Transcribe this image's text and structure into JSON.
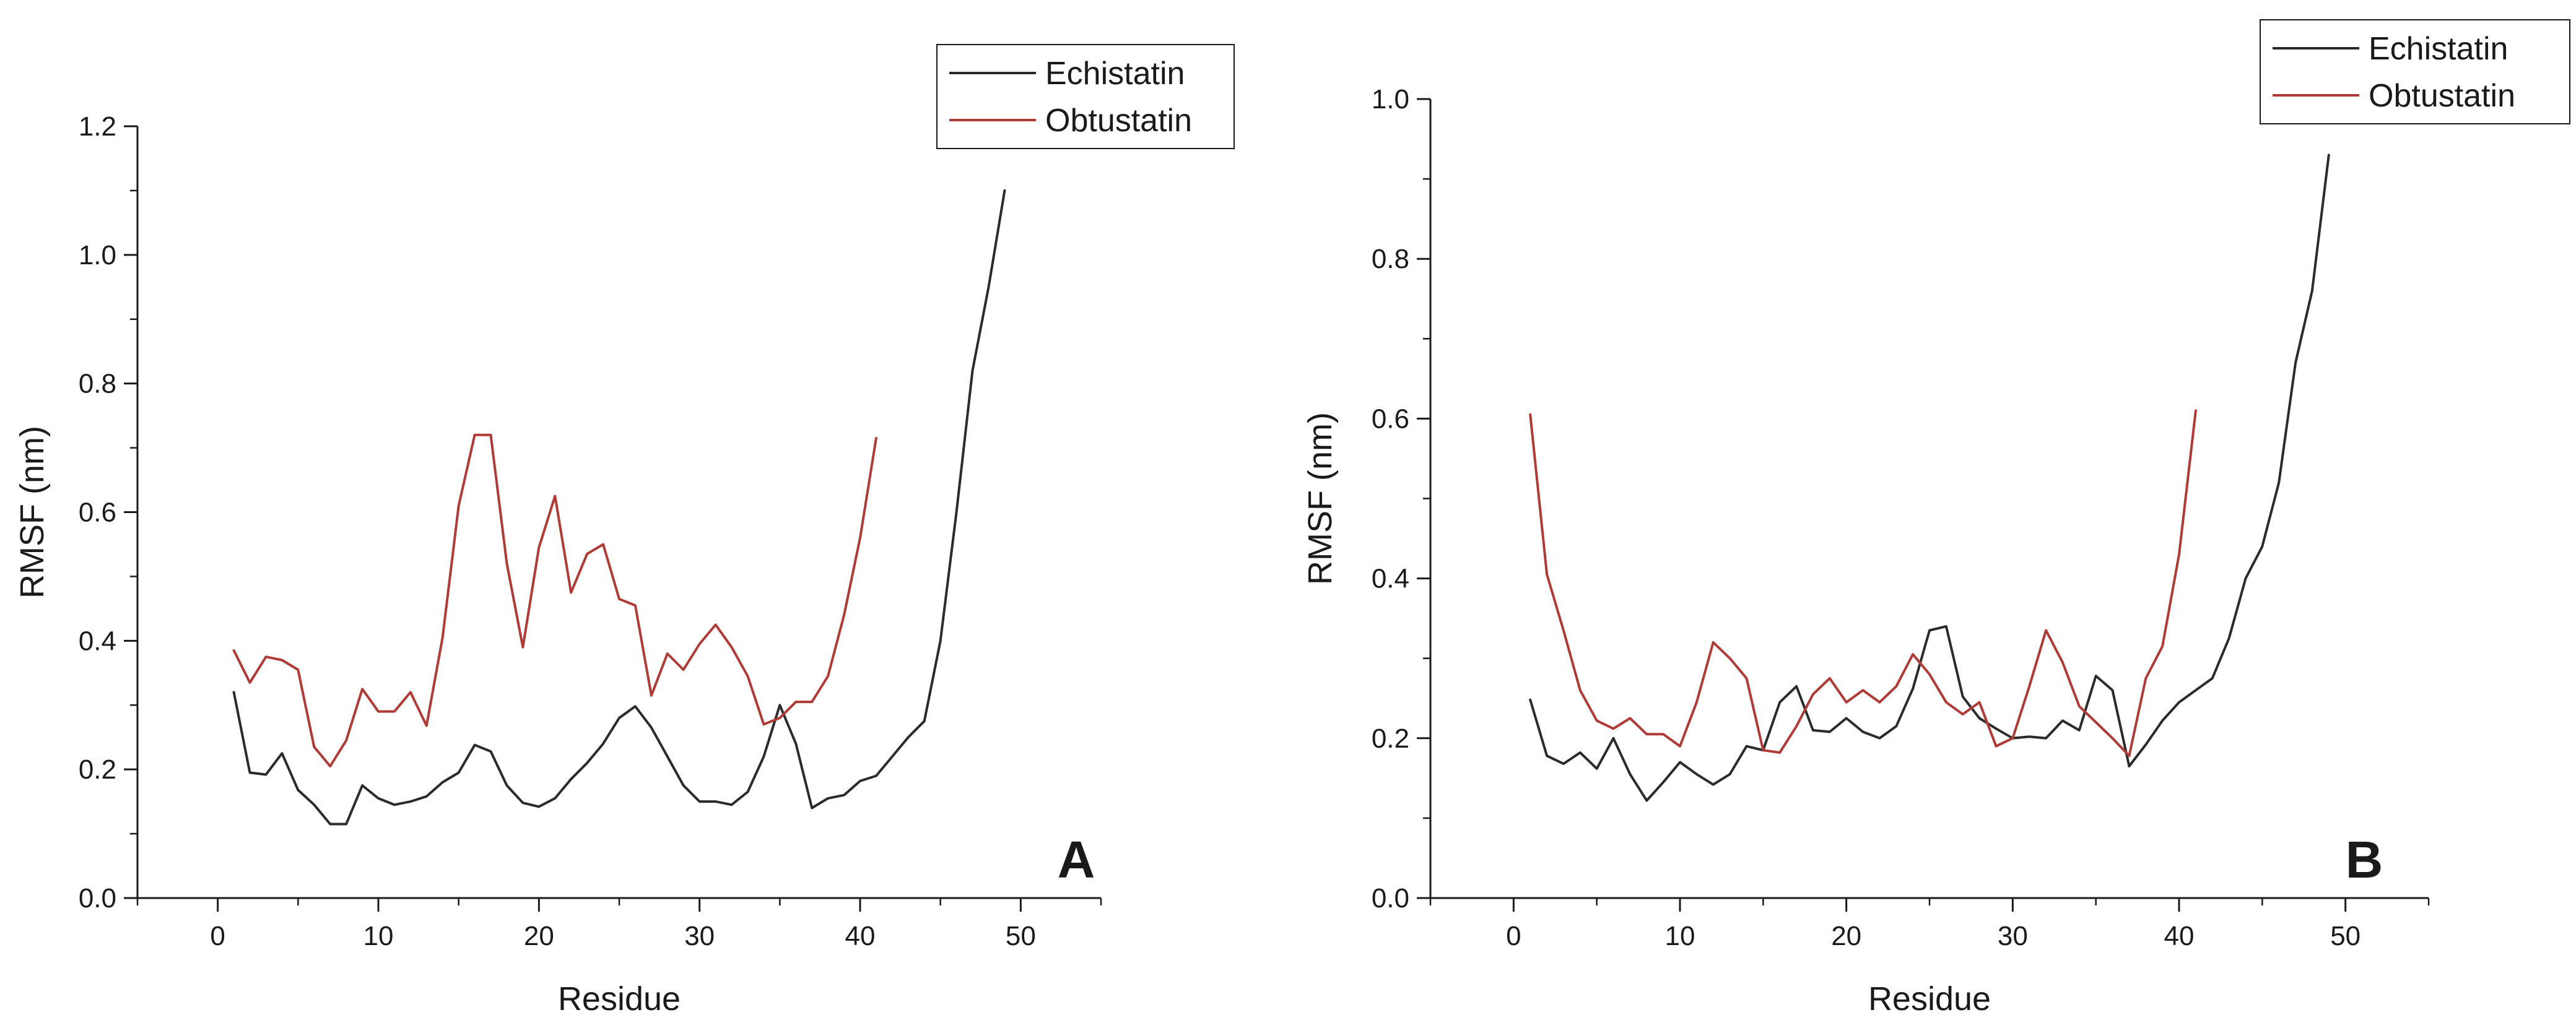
{
  "colors": {
    "echistatin": "#2b2b2b",
    "obtustatin": "#b03a35",
    "axis": "#1a1a1a"
  },
  "chart_data": [
    {
      "type": "line",
      "panel_label": "A",
      "xlabel": "Residue",
      "ylabel": "RMSF (nm)",
      "xlim": [
        -5,
        55
      ],
      "ylim": [
        0,
        1.2
      ],
      "x_ticks": [
        0,
        10,
        20,
        30,
        40,
        50
      ],
      "x_tick_labels": [
        "0",
        "10",
        "20",
        "30",
        "40",
        "50"
      ],
      "y_ticks": [
        0,
        0.2,
        0.4,
        0.6,
        0.8,
        1.0,
        1.2
      ],
      "y_tick_labels": [
        "0.0",
        "0.2",
        "0.4",
        "0.6",
        "0.8",
        "1.0",
        "1.2"
      ],
      "legend": [
        "Echistatin",
        "Obtustatin"
      ],
      "legend_position": "top-right",
      "series": [
        {
          "name": "Echistatin",
          "color_key": "echistatin",
          "x": [
            1,
            2,
            3,
            4,
            5,
            6,
            7,
            8,
            9,
            10,
            11,
            12,
            13,
            14,
            15,
            16,
            17,
            18,
            19,
            20,
            21,
            22,
            23,
            24,
            25,
            26,
            27,
            28,
            29,
            30,
            31,
            32,
            33,
            34,
            35,
            36,
            37,
            38,
            39,
            40,
            41,
            42,
            43,
            44,
            45,
            46,
            47,
            48,
            49
          ],
          "values": [
            0.32,
            0.195,
            0.192,
            0.225,
            0.168,
            0.145,
            0.115,
            0.115,
            0.175,
            0.155,
            0.145,
            0.15,
            0.158,
            0.18,
            0.195,
            0.238,
            0.228,
            0.175,
            0.148,
            0.142,
            0.155,
            0.185,
            0.21,
            0.24,
            0.28,
            0.298,
            0.265,
            0.22,
            0.175,
            0.15,
            0.15,
            0.145,
            0.165,
            0.22,
            0.3,
            0.24,
            0.14,
            0.155,
            0.16,
            0.182,
            0.19,
            0.22,
            0.25,
            0.275,
            0.4,
            0.6,
            0.82,
            0.95,
            1.1
          ]
        },
        {
          "name": "Obtustatin",
          "color_key": "obtustatin",
          "x": [
            1,
            2,
            3,
            4,
            5,
            6,
            7,
            8,
            9,
            10,
            11,
            12,
            13,
            14,
            15,
            16,
            17,
            18,
            19,
            20,
            21,
            22,
            23,
            24,
            25,
            26,
            27,
            28,
            29,
            30,
            31,
            32,
            33,
            34,
            35,
            36,
            37,
            38,
            39,
            40,
            41
          ],
          "values": [
            0.385,
            0.335,
            0.375,
            0.37,
            0.355,
            0.235,
            0.205,
            0.245,
            0.325,
            0.29,
            0.29,
            0.32,
            0.268,
            0.405,
            0.61,
            0.72,
            0.72,
            0.52,
            0.39,
            0.545,
            0.625,
            0.475,
            0.535,
            0.55,
            0.465,
            0.455,
            0.315,
            0.38,
            0.355,
            0.395,
            0.425,
            0.39,
            0.345,
            0.27,
            0.28,
            0.305,
            0.305,
            0.345,
            0.44,
            0.56,
            0.715
          ]
        }
      ]
    },
    {
      "type": "line",
      "panel_label": "B",
      "xlabel": "Residue",
      "ylabel": "RMSF (nm)",
      "xlim": [
        -5,
        55
      ],
      "ylim": [
        0,
        1.0
      ],
      "x_ticks": [
        0,
        10,
        20,
        30,
        40,
        50
      ],
      "x_tick_labels": [
        "0",
        "10",
        "20",
        "30",
        "40",
        "50"
      ],
      "y_ticks": [
        0,
        0.2,
        0.4,
        0.6,
        0.8,
        1.0
      ],
      "y_tick_labels": [
        "0.0",
        "0.2",
        "0.4",
        "0.6",
        "0.8",
        "1.0"
      ],
      "legend": [
        "Echistatin",
        "Obtustatin"
      ],
      "legend_position": "top-right",
      "series": [
        {
          "name": "Echistatin",
          "color_key": "echistatin",
          "x": [
            1,
            2,
            3,
            4,
            5,
            6,
            7,
            8,
            9,
            10,
            11,
            12,
            13,
            14,
            15,
            16,
            17,
            18,
            19,
            20,
            21,
            22,
            23,
            24,
            25,
            26,
            27,
            28,
            29,
            30,
            31,
            32,
            33,
            34,
            35,
            36,
            37,
            38,
            39,
            40,
            41,
            42,
            43,
            44,
            45,
            46,
            47,
            48,
            49
          ],
          "values": [
            0.248,
            0.178,
            0.168,
            0.182,
            0.162,
            0.2,
            0.155,
            0.122,
            0.145,
            0.17,
            0.155,
            0.142,
            0.155,
            0.19,
            0.185,
            0.245,
            0.265,
            0.21,
            0.208,
            0.225,
            0.208,
            0.2,
            0.215,
            0.262,
            0.335,
            0.34,
            0.252,
            0.225,
            0.212,
            0.2,
            0.202,
            0.2,
            0.222,
            0.21,
            0.278,
            0.26,
            0.165,
            0.192,
            0.222,
            0.245,
            0.26,
            0.275,
            0.325,
            0.4,
            0.44,
            0.52,
            0.67,
            0.76,
            0.93
          ]
        },
        {
          "name": "Obtustatin",
          "color_key": "obtustatin",
          "x": [
            1,
            2,
            3,
            4,
            5,
            6,
            7,
            8,
            9,
            10,
            11,
            12,
            13,
            14,
            15,
            16,
            17,
            18,
            19,
            20,
            21,
            22,
            23,
            24,
            25,
            26,
            27,
            28,
            29,
            30,
            31,
            32,
            33,
            34,
            35,
            36,
            37,
            38,
            39,
            40,
            41
          ],
          "values": [
            0.605,
            0.405,
            0.335,
            0.26,
            0.222,
            0.212,
            0.225,
            0.205,
            0.205,
            0.19,
            0.245,
            0.32,
            0.3,
            0.275,
            0.185,
            0.182,
            0.215,
            0.255,
            0.275,
            0.245,
            0.26,
            0.245,
            0.265,
            0.305,
            0.28,
            0.245,
            0.23,
            0.245,
            0.19,
            0.2,
            0.265,
            0.335,
            0.295,
            0.24,
            0.22,
            0.2,
            0.178,
            0.275,
            0.315,
            0.43,
            0.61
          ]
        }
      ]
    }
  ]
}
